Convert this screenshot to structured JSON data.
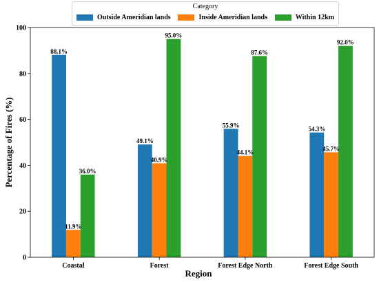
{
  "chart_data": {
    "type": "bar",
    "title": "",
    "xlabel": "Region",
    "ylabel": "Percentage of Fires (%)",
    "ylim": [
      0,
      100
    ],
    "yticks": [
      0,
      20,
      40,
      60,
      80,
      100
    ],
    "grid": false,
    "legend_placement": "top-center",
    "legend_title": "Category",
    "categories": [
      "Coastal",
      "Forest",
      "Forest Edge North",
      "Forest Edge South"
    ],
    "series": [
      {
        "name": "Outside Ameridian lands",
        "color": "#1f77b4",
        "values": [
          88.1,
          49.1,
          55.9,
          54.3
        ],
        "labels": [
          "88.1%",
          "49.1%",
          "55.9%",
          "54.3%"
        ]
      },
      {
        "name": "Inside Ameridian lands",
        "color": "#ff7f0e",
        "values": [
          11.9,
          40.9,
          44.1,
          45.7
        ],
        "labels": [
          "11.9%",
          "40.9%",
          "44.1%",
          "45.7%"
        ]
      },
      {
        "name": "Within 12km",
        "color": "#2ca02c",
        "values": [
          36.0,
          95.0,
          87.6,
          92.0
        ],
        "labels": [
          "36.0%",
          "95.0%",
          "87.6%",
          "92.0%"
        ]
      }
    ]
  }
}
